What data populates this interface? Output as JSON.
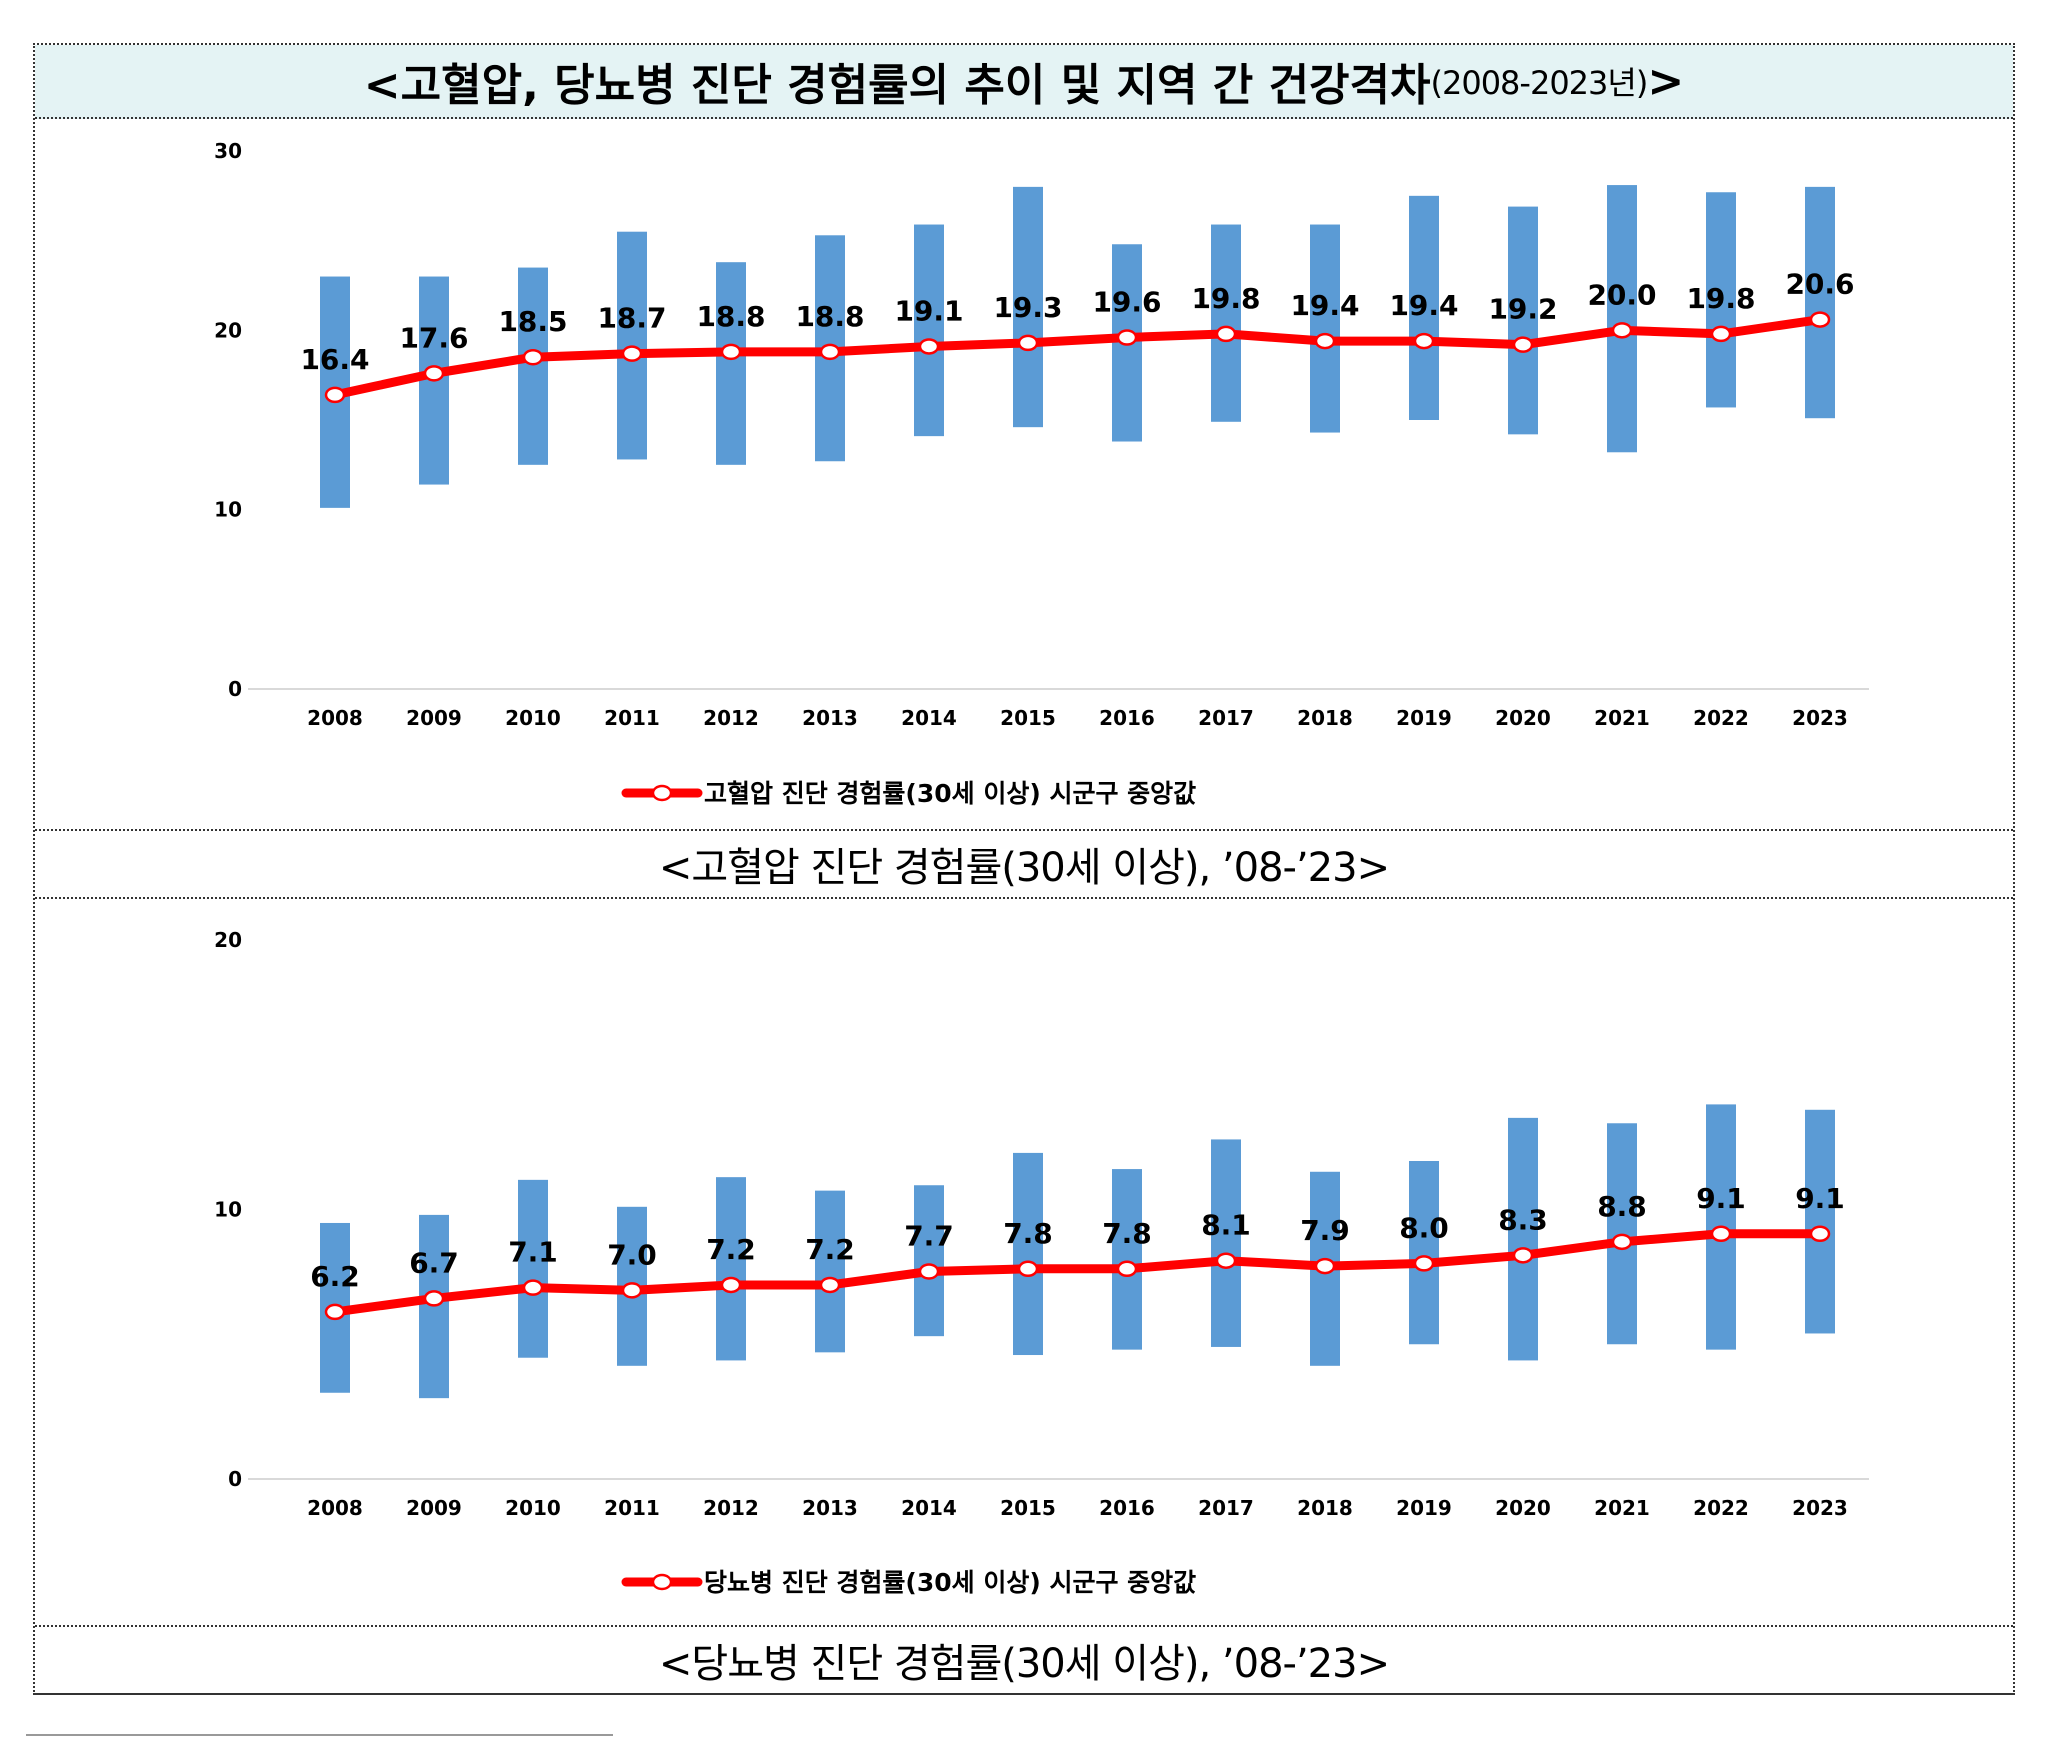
{
  "title": {
    "main": "<고혈압, 당뇨병 진단 경험률의 추이 및 지역 간 건강격차",
    "sub": "(2008-2023년)",
    "end": ">"
  },
  "captions": [
    "<고혈압 진단 경험률(30세 이상), ’08-’23>",
    "<당뇨병 진단 경험률(30세 이상), ’08-’23>"
  ],
  "colors": {
    "bar": "#5b9bd5",
    "line": "#ff0000",
    "title_bg": "#e4f3f4"
  },
  "chart_data": [
    {
      "type": "bar+line",
      "categories": [
        "2008",
        "2009",
        "2010",
        "2011",
        "2012",
        "2013",
        "2014",
        "2015",
        "2016",
        "2017",
        "2018",
        "2019",
        "2020",
        "2021",
        "2022",
        "2023"
      ],
      "ylim": [
        0,
        30
      ],
      "yticks": [
        0,
        10,
        20,
        30
      ],
      "grid": false,
      "legend_position": "bottom",
      "range_bars": {
        "min": [
          10.1,
          11.4,
          12.5,
          12.8,
          12.5,
          12.7,
          14.1,
          14.6,
          13.8,
          14.9,
          14.3,
          15.0,
          14.2,
          13.2,
          15.7,
          15.1
        ],
        "max": [
          23.0,
          23.0,
          23.5,
          25.5,
          23.8,
          25.3,
          25.9,
          28.0,
          24.8,
          25.9,
          25.9,
          27.5,
          26.9,
          28.1,
          27.7,
          28.0
        ]
      },
      "series": [
        {
          "name": "고혈압 진단 경험률(30세 이상) 시군구 중앙값",
          "values": [
            16.4,
            17.6,
            18.5,
            18.7,
            18.8,
            18.8,
            19.1,
            19.3,
            19.6,
            19.8,
            19.4,
            19.4,
            19.2,
            20.0,
            19.8,
            20.6
          ]
        }
      ]
    },
    {
      "type": "bar+line",
      "categories": [
        "2008",
        "2009",
        "2010",
        "2011",
        "2012",
        "2013",
        "2014",
        "2015",
        "2016",
        "2017",
        "2018",
        "2019",
        "2020",
        "2021",
        "2022",
        "2023"
      ],
      "ylim": [
        0,
        20
      ],
      "yticks": [
        0,
        10,
        20
      ],
      "grid": false,
      "legend_position": "bottom",
      "range_bars": {
        "min": [
          3.2,
          3.0,
          4.5,
          4.2,
          4.4,
          4.7,
          5.3,
          4.6,
          4.8,
          4.9,
          4.2,
          5.0,
          4.4,
          5.0,
          4.8,
          5.4
        ],
        "max": [
          9.5,
          9.8,
          11.1,
          10.1,
          11.2,
          10.7,
          10.9,
          12.1,
          11.5,
          12.6,
          11.4,
          11.8,
          13.4,
          13.2,
          13.9,
          13.7
        ]
      },
      "series": [
        {
          "name": "당뇨병 진단 경험률(30세 이상) 시군구 중앙값",
          "values": [
            6.2,
            6.7,
            7.1,
            7.0,
            7.2,
            7.2,
            7.7,
            7.8,
            7.8,
            8.1,
            7.9,
            8.0,
            8.3,
            8.8,
            9.1,
            9.1
          ]
        }
      ]
    }
  ]
}
